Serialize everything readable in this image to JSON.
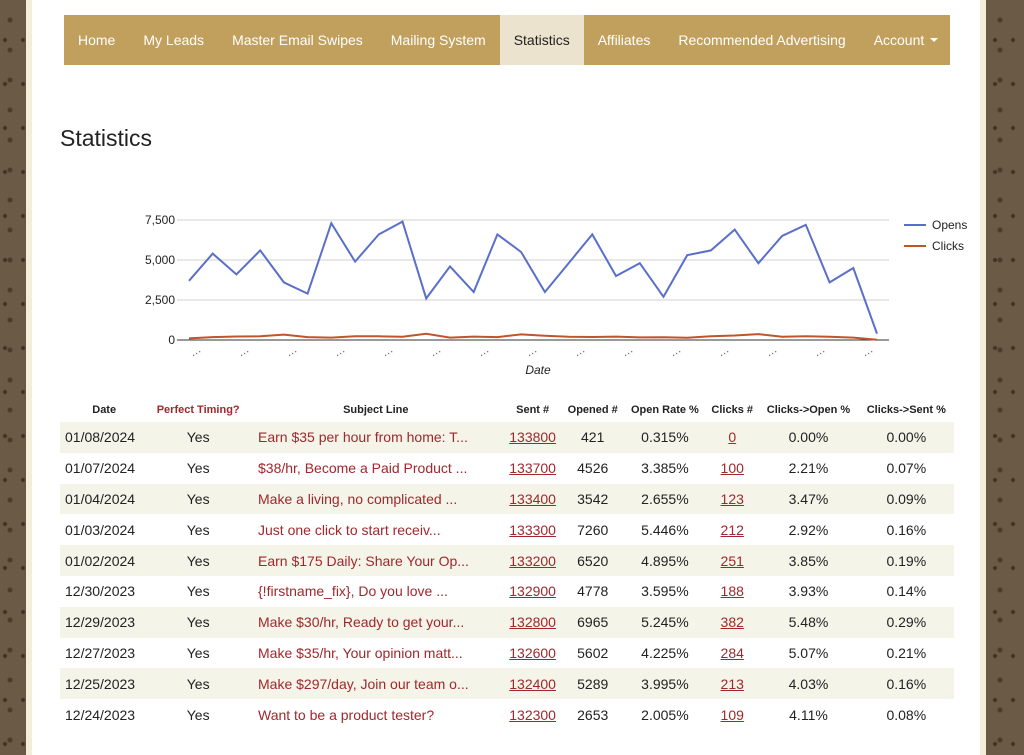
{
  "nav": {
    "items": [
      {
        "label": "Home"
      },
      {
        "label": "My Leads"
      },
      {
        "label": "Master Email Swipes"
      },
      {
        "label": "Mailing System"
      },
      {
        "label": "Statistics"
      },
      {
        "label": "Affiliates"
      },
      {
        "label": "Recommended Advertising"
      },
      {
        "label": "Account"
      }
    ],
    "active": "Statistics"
  },
  "page": {
    "title": "Statistics"
  },
  "chart_data": {
    "type": "line",
    "xlabel": "Date",
    "ylabel": "",
    "ylim": [
      0,
      7500
    ],
    "yticks": [
      "0",
      "2,500",
      "5,000",
      "7,500"
    ],
    "legend_position": "right",
    "grid": true,
    "series": [
      {
        "name": "Opens",
        "color": "#5a6fc9",
        "values": [
          3700,
          5400,
          4100,
          5600,
          3600,
          2900,
          7300,
          4900,
          6600,
          7400,
          2600,
          4600,
          3000,
          6600,
          5500,
          3000,
          4800,
          6600,
          4000,
          4800,
          2700,
          5300,
          5600,
          6900,
          4800,
          6500,
          7200,
          3600,
          4500,
          400
        ]
      },
      {
        "name": "Clicks",
        "color": "#c0542c",
        "values": [
          100,
          180,
          220,
          230,
          340,
          180,
          150,
          240,
          230,
          200,
          390,
          150,
          210,
          180,
          350,
          260,
          200,
          190,
          210,
          160,
          170,
          140,
          230,
          280,
          370,
          200,
          240,
          200,
          150,
          10
        ]
      }
    ],
    "x_tick_labels": [
      "…",
      "…",
      "…",
      "…",
      "…",
      "…",
      "…",
      "…",
      "…",
      "…",
      "…",
      "…",
      "…",
      "…",
      "…"
    ]
  },
  "table": {
    "headers": [
      "Date",
      "Perfect Timing?",
      "Subject Line",
      "Sent #",
      "Opened #",
      "Open Rate %",
      "Clicks #",
      "Clicks->Open %",
      "Clicks->Sent %"
    ],
    "rows": [
      {
        "date": "01/08/2024",
        "timing": "Yes",
        "subject": "Earn $35 per hour from home: T...",
        "sent": "133800",
        "opened": "421",
        "open_rate": "0.315%",
        "clicks": "0",
        "clicks_open": "0.00%",
        "clicks_sent": "0.00%"
      },
      {
        "date": "01/07/2024",
        "timing": "Yes",
        "subject": "$38/hr, Become a Paid Product ...",
        "sent": "133700",
        "opened": "4526",
        "open_rate": "3.385%",
        "clicks": "100",
        "clicks_open": "2.21%",
        "clicks_sent": "0.07%"
      },
      {
        "date": "01/04/2024",
        "timing": "Yes",
        "subject": "Make a living, no complicated ...",
        "sent": "133400",
        "opened": "3542",
        "open_rate": "2.655%",
        "clicks": "123",
        "clicks_open": "3.47%",
        "clicks_sent": "0.09%"
      },
      {
        "date": "01/03/2024",
        "timing": "Yes",
        "subject": "Just one click to start receiv...",
        "sent": "133300",
        "opened": "7260",
        "open_rate": "5.446%",
        "clicks": "212",
        "clicks_open": "2.92%",
        "clicks_sent": "0.16%"
      },
      {
        "date": "01/02/2024",
        "timing": "Yes",
        "subject": "Earn $175 Daily: Share Your Op...",
        "sent": "133200",
        "opened": "6520",
        "open_rate": "4.895%",
        "clicks": "251",
        "clicks_open": "3.85%",
        "clicks_sent": "0.19%"
      },
      {
        "date": "12/30/2023",
        "timing": "Yes",
        "subject": "{!firstname_fix}, Do you love ...",
        "sent": "132900",
        "opened": "4778",
        "open_rate": "3.595%",
        "clicks": "188",
        "clicks_open": "3.93%",
        "clicks_sent": "0.14%"
      },
      {
        "date": "12/29/2023",
        "timing": "Yes",
        "subject": "Make $30/hr, Ready to get your...",
        "sent": "132800",
        "opened": "6965",
        "open_rate": "5.245%",
        "clicks": "382",
        "clicks_open": "5.48%",
        "clicks_sent": "0.29%"
      },
      {
        "date": "12/27/2023",
        "timing": "Yes",
        "subject": "Make $35/hr, Your opinion matt...",
        "sent": "132600",
        "opened": "5602",
        "open_rate": "4.225%",
        "clicks": "284",
        "clicks_open": "5.07%",
        "clicks_sent": "0.21%"
      },
      {
        "date": "12/25/2023",
        "timing": "Yes",
        "subject": "Make $297/day, Join our team o...",
        "sent": "132400",
        "opened": "5289",
        "open_rate": "3.995%",
        "clicks": "213",
        "clicks_open": "4.03%",
        "clicks_sent": "0.16%"
      },
      {
        "date": "12/24/2023",
        "timing": "Yes",
        "subject": "Want to be a product tester?",
        "sent": "132300",
        "opened": "2653",
        "open_rate": "2.005%",
        "clicks": "109",
        "clicks_open": "4.11%",
        "clicks_sent": "0.08%"
      }
    ]
  }
}
